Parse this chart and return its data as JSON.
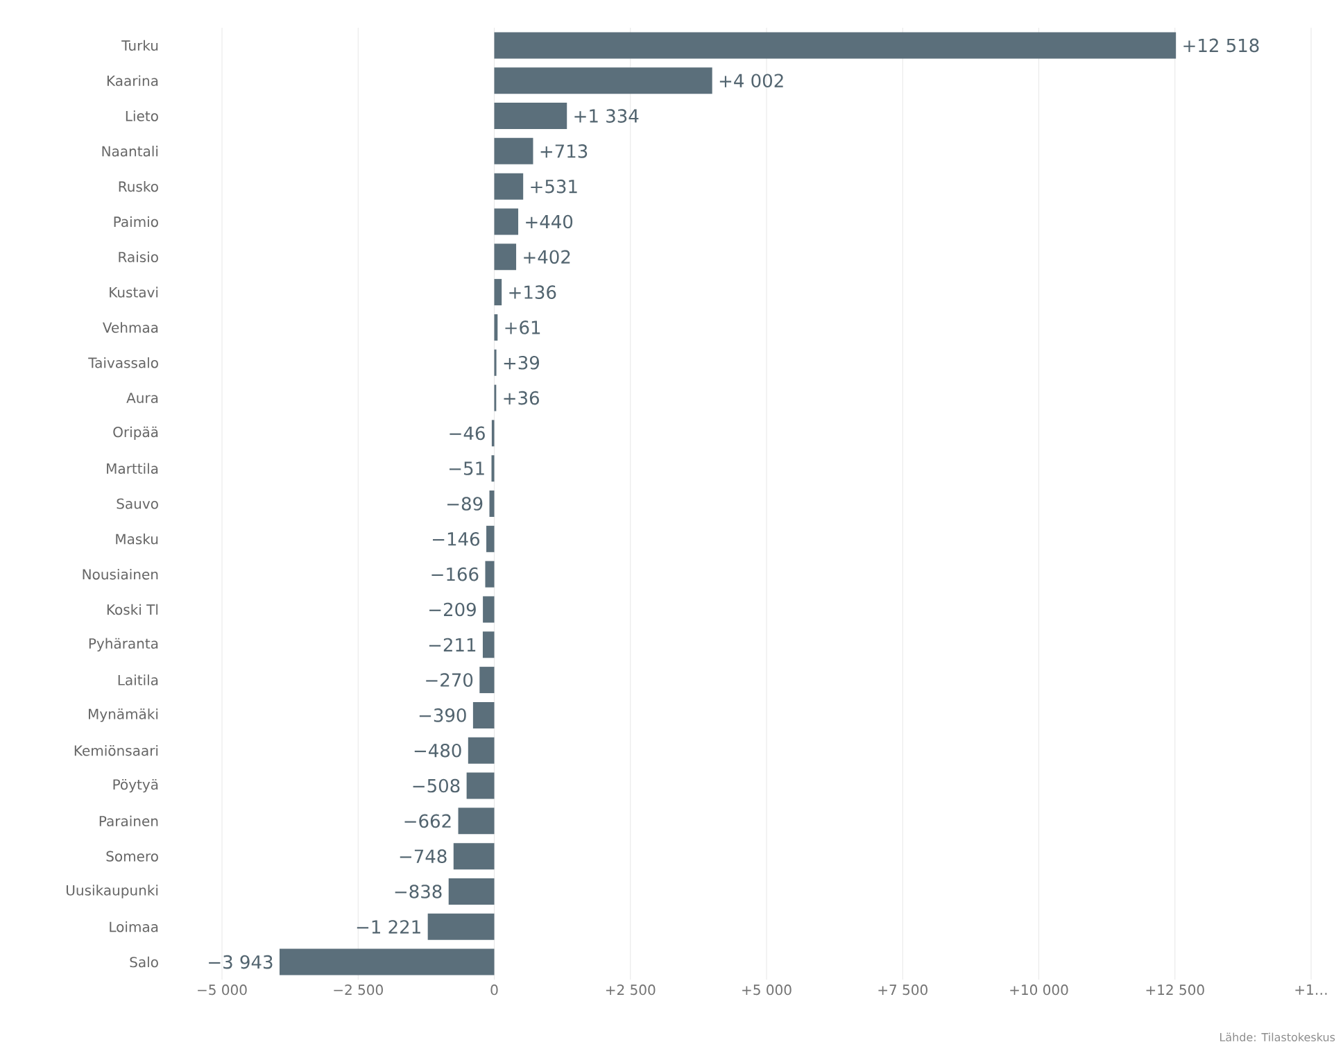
{
  "chart_data": {
    "type": "bar",
    "orientation": "horizontal",
    "color": "#5b6f7b",
    "grid": "x",
    "categories": [
      "Turku",
      "Kaarina",
      "Lieto",
      "Naantali",
      "Rusko",
      "Paimio",
      "Raisio",
      "Kustavi",
      "Vehmaa",
      "Taivassalo",
      "Aura",
      "Oripää",
      "Marttila",
      "Sauvo",
      "Masku",
      "Nousiainen",
      "Koski Tl",
      "Pyhäranta",
      "Laitila",
      "Mynämäki",
      "Kemiönsaari",
      "Pöytyä",
      "Parainen",
      "Somero",
      "Uusikaupunki",
      "Loimaa",
      "Salo"
    ],
    "values": [
      12518,
      4002,
      1334,
      713,
      531,
      440,
      402,
      136,
      61,
      39,
      36,
      -46,
      -51,
      -89,
      -146,
      -166,
      -209,
      -211,
      -270,
      -390,
      -480,
      -508,
      -662,
      -748,
      -838,
      -1221,
      -3943
    ],
    "value_labels": [
      "+12 518",
      "+4 002",
      "+1 334",
      "+713",
      "+531",
      "+440",
      "+402",
      "+136",
      "+61",
      "+39",
      "+36",
      "−46",
      "−51",
      "−89",
      "−146",
      "−166",
      "−209",
      "−211",
      "−270",
      "−390",
      "−480",
      "−508",
      "−662",
      "−748",
      "−838",
      "−1 221",
      "−3 943"
    ],
    "xlim": [
      -5000,
      15000
    ],
    "xticks": [
      {
        "value": -5000,
        "label": "−5 000"
      },
      {
        "value": -2500,
        "label": "−2 500"
      },
      0,
      {
        "value": 2500,
        "label": "+2 500"
      },
      {
        "value": 5000,
        "label": "+5 000"
      },
      {
        "value": 7500,
        "label": "+7 500"
      },
      {
        "value": 10000,
        "label": "+10 000"
      },
      {
        "value": 12500,
        "label": "+12 500"
      },
      {
        "value": 15000,
        "label": "+1…"
      }
    ],
    "annotations": [
      "Lähde: Tilastokeskus"
    ]
  }
}
